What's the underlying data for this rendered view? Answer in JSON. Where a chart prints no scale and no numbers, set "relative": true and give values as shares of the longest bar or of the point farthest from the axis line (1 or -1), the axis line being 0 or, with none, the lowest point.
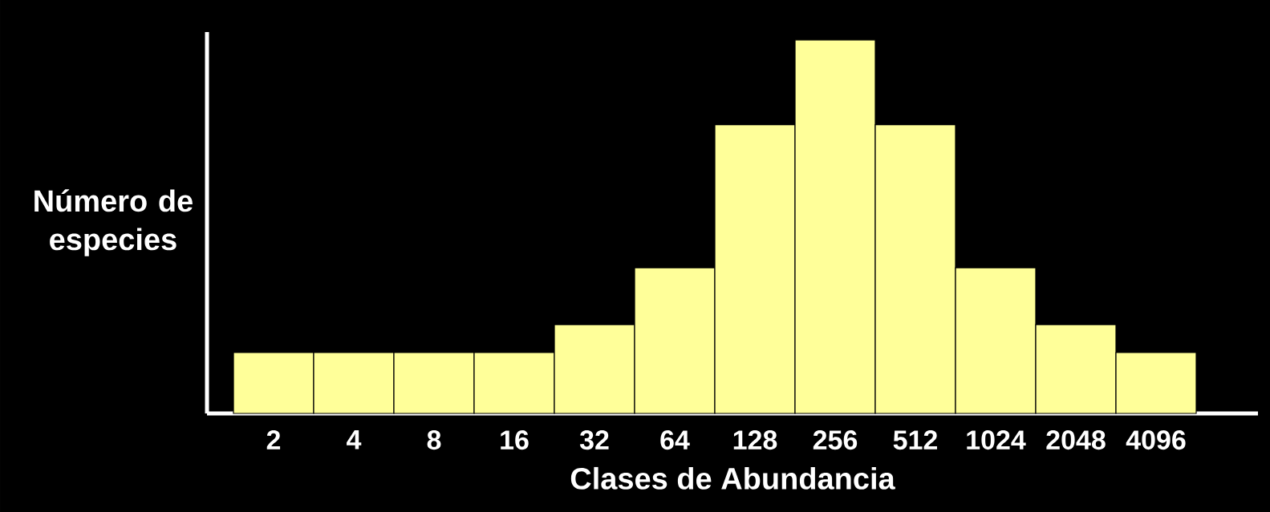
{
  "chart_data": {
    "type": "bar",
    "relative": true,
    "xlabel": "Clases de Abundancia",
    "ylabel": "Número de especies",
    "categories": [
      "2",
      "4",
      "8",
      "16",
      "32",
      "64",
      "128",
      "256",
      "512",
      "1024",
      "2048",
      "4096"
    ],
    "values": [
      0.163,
      0.163,
      0.163,
      0.163,
      0.238,
      0.39,
      0.773,
      1,
      0.773,
      0.39,
      0.238,
      0.163
    ],
    "color": "#ffff99"
  }
}
